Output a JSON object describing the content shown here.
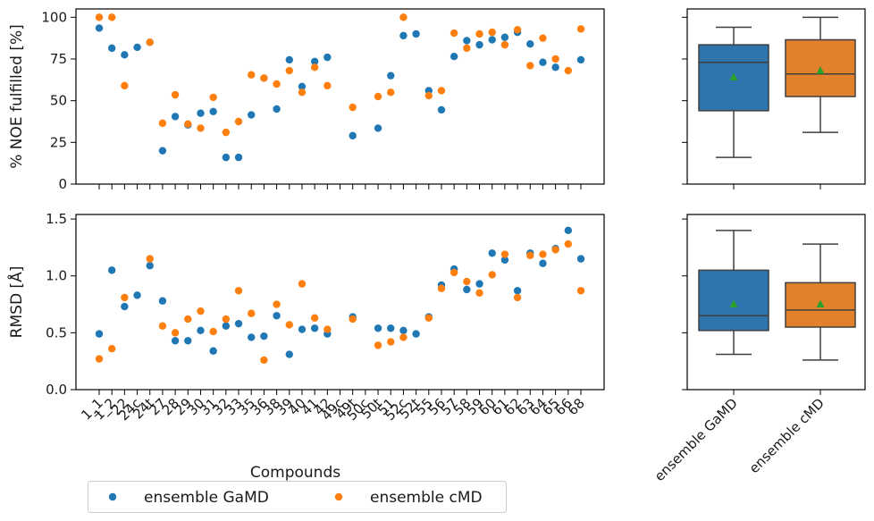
{
  "chart_data": [
    {
      "type": "scatter",
      "id": "noe_scatter",
      "ylabel": "% NOE fulfilled [%]",
      "ylim": [
        0,
        105
      ],
      "yticks": [
        0,
        25,
        50,
        75,
        100
      ],
      "categories": [
        "1_1",
        "1_2",
        "22",
        "24c",
        "24t",
        "27",
        "28",
        "29",
        "30",
        "31",
        "32",
        "33",
        "35",
        "36",
        "38",
        "39",
        "40",
        "41",
        "42",
        "49c",
        "49t",
        "50c",
        "50t",
        "51",
        "52c",
        "52t",
        "55",
        "56",
        "57",
        "58",
        "59",
        "60",
        "61",
        "62",
        "63",
        "64",
        "65",
        "66",
        "68"
      ],
      "tick_labels": [
        "1_1",
        "1_2",
        "22",
        "24c",
        "24t",
        "27",
        "28",
        "29",
        "30",
        "31",
        "32",
        "33",
        "35",
        "36",
        "38",
        "39",
        "40",
        "41",
        "42",
        "49c",
        "49t",
        "50c",
        "50t",
        "51",
        "52c",
        "52t",
        "55",
        "56",
        "57",
        "58",
        "59",
        "60",
        "61",
        "62",
        "63",
        "64",
        "65",
        "66",
        "68"
      ],
      "tick_labels_shown": false,
      "series": [
        {
          "name": "ensemble GaMD",
          "color": "#1f77b4",
          "values": [
            93.5,
            81.5,
            77.5,
            82,
            85,
            20,
            40.5,
            35.5,
            42.5,
            43.5,
            16,
            16,
            41.5,
            63.5,
            45,
            74.5,
            58.5,
            73.5,
            76,
            null,
            29,
            null,
            33.5,
            65,
            89,
            90,
            56,
            44.5,
            76.5,
            86,
            83.5,
            86.5,
            88,
            91,
            84,
            73,
            70,
            null,
            74.5
          ]
        },
        {
          "name": "ensemble cMD",
          "color": "#ff7f0e",
          "values": [
            100,
            100,
            59,
            null,
            85,
            36.5,
            53.5,
            36,
            33.5,
            52,
            31,
            37.5,
            65.5,
            63.5,
            60,
            68,
            55,
            70,
            59,
            null,
            46,
            null,
            52.5,
            55,
            100,
            null,
            53,
            56,
            90.5,
            81.5,
            90,
            91,
            83.5,
            92.5,
            71,
            87.5,
            75,
            68,
            93
          ]
        }
      ]
    },
    {
      "type": "box",
      "id": "noe_box",
      "ylim": [
        0,
        105
      ],
      "categories": [
        "ensemble GaMD",
        "ensemble cMD"
      ],
      "boxes": [
        {
          "name": "ensemble GaMD",
          "color": "#2e75ad",
          "whisker_low": 16,
          "q1": 44,
          "median": 73,
          "q3": 83.5,
          "whisker_high": 94,
          "mean": 64
        },
        {
          "name": "ensemble cMD",
          "color": "#e1812c",
          "whisker_low": 31,
          "q1": 52.5,
          "median": 66,
          "q3": 86.5,
          "whisker_high": 100,
          "mean": 68
        }
      ]
    },
    {
      "type": "scatter",
      "id": "rmsd_scatter",
      "xlabel": "Compounds",
      "ylabel": "RMSD [Å]",
      "ylim": [
        0,
        1.54
      ],
      "yticks": [
        0.0,
        0.5,
        1.0,
        1.5
      ],
      "ytick_labels": [
        "0.0",
        "0.5",
        "1.0",
        "1.5"
      ],
      "categories": [
        "1_1",
        "1_2",
        "22",
        "24c",
        "24t",
        "27",
        "28",
        "29",
        "30",
        "31",
        "32",
        "33",
        "35",
        "36",
        "38",
        "39",
        "40",
        "41",
        "42",
        "49c",
        "49t",
        "50c",
        "50t",
        "51",
        "52c",
        "52t",
        "55",
        "56",
        "57",
        "58",
        "59",
        "60",
        "61",
        "62",
        "63",
        "64",
        "65",
        "66",
        "68"
      ],
      "tick_labels": [
        "1_1",
        "1_2",
        "22",
        "24c",
        "24t",
        "27",
        "28",
        "29",
        "30",
        "31",
        "32",
        "33",
        "35",
        "36",
        "38",
        "39",
        "40",
        "41",
        "42",
        "49c",
        "49t",
        "50c",
        "50t",
        "51",
        "52c",
        "52t",
        "55",
        "56",
        "57",
        "58",
        "59",
        "60",
        "61",
        "62",
        "63",
        "64",
        "65",
        "66",
        "68"
      ],
      "series": [
        {
          "name": "ensemble GaMD",
          "color": "#1f77b4",
          "values": [
            0.49,
            1.05,
            0.73,
            0.83,
            1.09,
            0.78,
            0.43,
            0.43,
            0.52,
            0.34,
            0.56,
            0.58,
            0.46,
            0.47,
            0.65,
            0.31,
            0.53,
            0.54,
            0.49,
            null,
            0.64,
            null,
            0.54,
            0.54,
            0.52,
            0.49,
            0.64,
            0.92,
            1.06,
            0.88,
            0.93,
            1.2,
            1.14,
            0.87,
            1.2,
            1.11,
            1.24,
            1.4,
            1.15
          ]
        },
        {
          "name": "ensemble cMD",
          "color": "#ff7f0e",
          "values": [
            0.27,
            0.36,
            0.81,
            null,
            1.15,
            0.56,
            0.5,
            0.62,
            0.69,
            0.51,
            0.62,
            0.87,
            0.67,
            0.26,
            0.75,
            0.57,
            0.93,
            0.63,
            0.53,
            null,
            0.62,
            null,
            0.39,
            0.42,
            0.46,
            null,
            0.63,
            0.89,
            1.03,
            0.95,
            0.85,
            1.01,
            1.19,
            0.81,
            1.18,
            1.19,
            1.23,
            1.28,
            0.87
          ]
        }
      ],
      "legend": {
        "position": "bottom-left",
        "entries": [
          "ensemble GaMD",
          "ensemble cMD"
        ]
      }
    },
    {
      "type": "box",
      "id": "rmsd_box",
      "ylim": [
        0,
        1.54
      ],
      "categories": [
        "ensemble GaMD",
        "ensemble cMD"
      ],
      "boxes": [
        {
          "name": "ensemble GaMD",
          "color": "#2e75ad",
          "whisker_low": 0.31,
          "q1": 0.52,
          "median": 0.65,
          "q3": 1.05,
          "whisker_high": 1.4,
          "mean": 0.75
        },
        {
          "name": "ensemble cMD",
          "color": "#e1812c",
          "whisker_low": 0.26,
          "q1": 0.55,
          "median": 0.7,
          "q3": 0.94,
          "whisker_high": 1.28,
          "mean": 0.75
        }
      ]
    }
  ],
  "colors": {
    "gamd": "#1f77b4",
    "cmd": "#ff7f0e",
    "mean_marker": "#2ca02c",
    "box_line": "#3f3f3f"
  }
}
